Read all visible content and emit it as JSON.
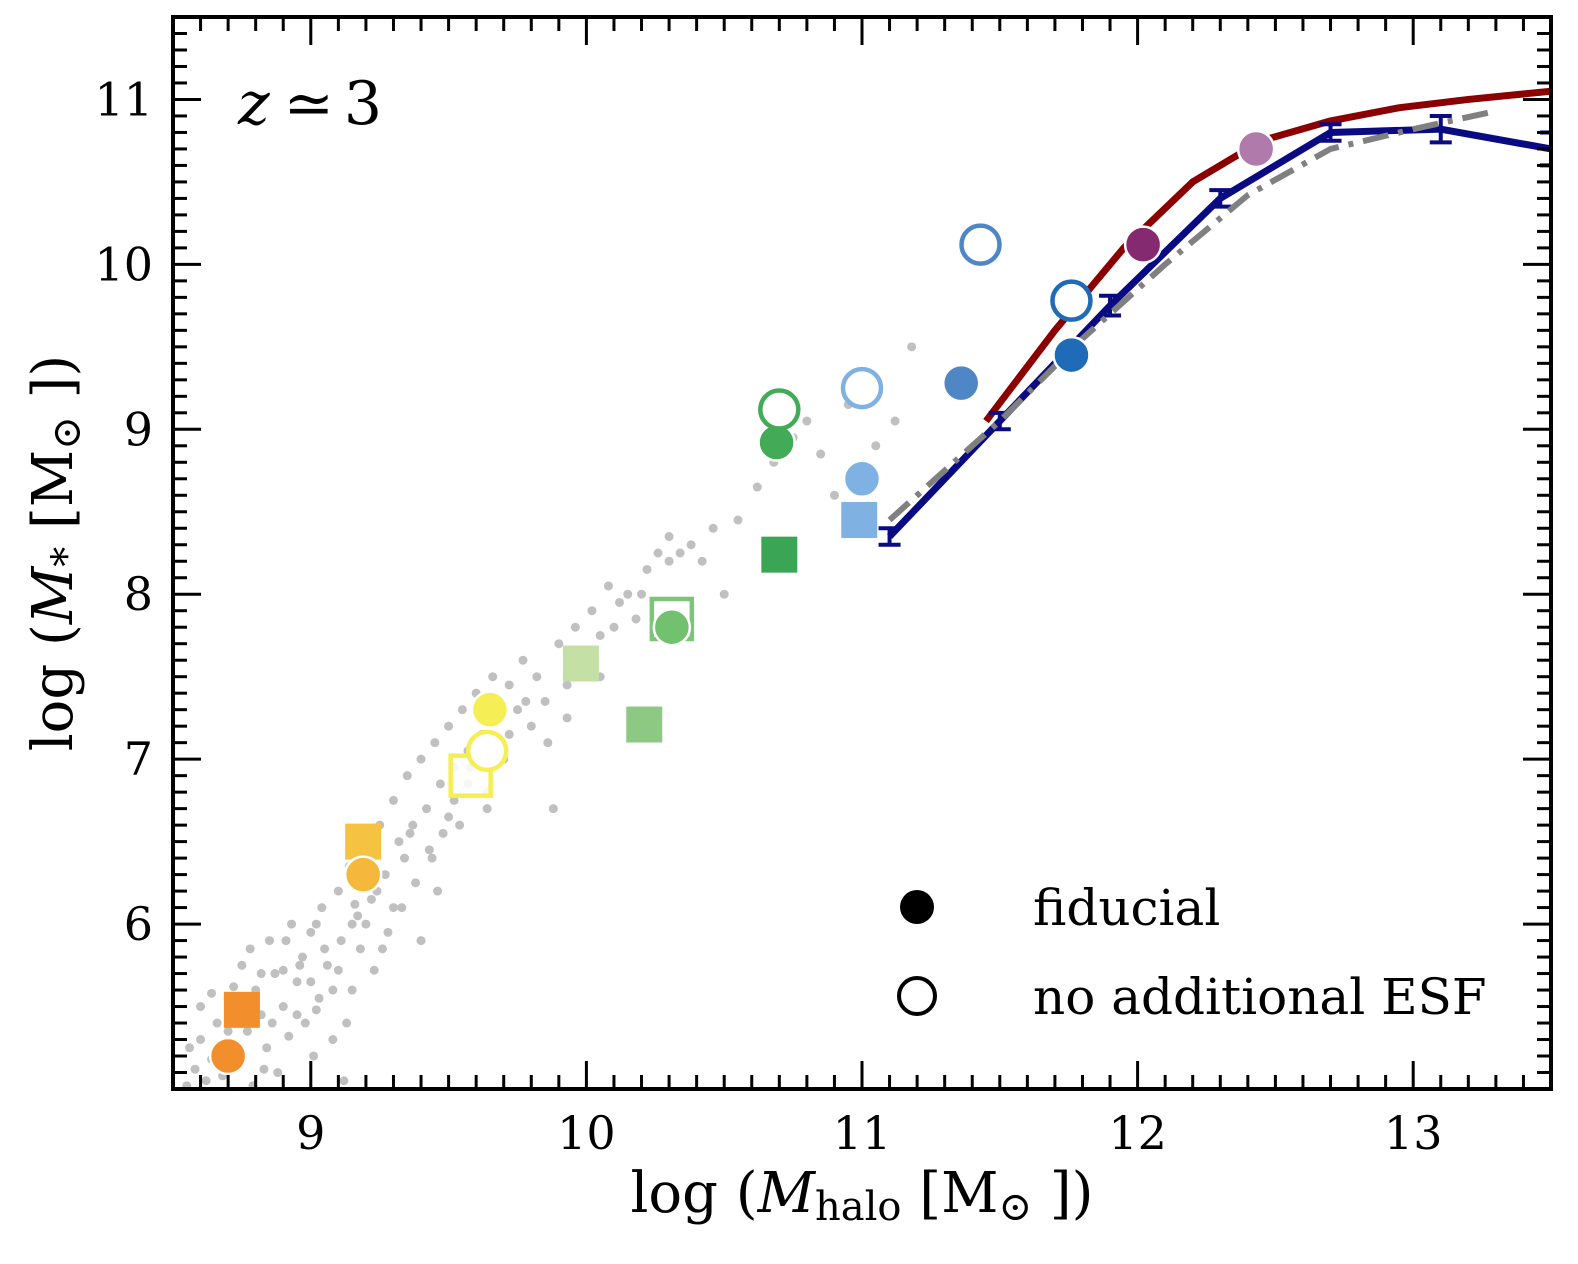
{
  "chart_data": {
    "type": "scatter",
    "annotation": {
      "var": "z",
      "symbol": "≃",
      "value": "3"
    },
    "xlabel": {
      "pre": "log (",
      "var": "M",
      "sub": "halo",
      "unit": " [M",
      "sun": "⊙",
      "post": " ])"
    },
    "ylabel": {
      "pre": "log (",
      "var": "M",
      "sub": "*",
      "unit": " [M",
      "sun": "⊙",
      "post": " ])"
    },
    "xlim": [
      8.5,
      13.5
    ],
    "ylim": [
      5.0,
      11.5
    ],
    "xticks": [
      "9",
      "10",
      "11",
      "12",
      "13"
    ],
    "yticks": [
      "6",
      "7",
      "8",
      "9",
      "10",
      "11"
    ],
    "legend": {
      "position": "bottom-right",
      "entries": [
        {
          "marker": "filled-circle",
          "label": "fiducial"
        },
        {
          "marker": "open-circle",
          "label": "no additional ESF"
        }
      ]
    },
    "colors": {
      "red_line": "#8b0000",
      "blue_line": "#0a0a82",
      "gray_line": "#808080",
      "background_points": "#c0c0c0"
    },
    "lines": [
      {
        "name": "abundance matching (red)",
        "color": "#8b0000",
        "x": [
          11.45,
          11.7,
          11.95,
          12.2,
          12.45,
          12.7,
          12.95,
          13.2,
          13.5
        ],
        "y": [
          9.05,
          9.6,
          10.1,
          10.5,
          10.75,
          10.87,
          10.95,
          11.0,
          11.05
        ]
      },
      {
        "name": "abundance matching with errors (blue)",
        "color": "#0a0a82",
        "x": [
          11.1,
          11.5,
          11.9,
          12.3,
          12.7,
          13.1,
          13.5
        ],
        "y": [
          8.35,
          9.05,
          9.75,
          10.4,
          10.8,
          10.82,
          10.7
        ],
        "yerr": [
          0.05,
          0.05,
          0.06,
          0.05,
          0.05,
          0.08,
          0.1
        ]
      },
      {
        "name": "abundance matching (gray dash-dot)",
        "color": "#808080",
        "x": [
          11.1,
          11.5,
          11.8,
          12.1,
          12.4,
          12.7,
          13.0,
          13.3
        ],
        "y": [
          8.45,
          9.05,
          9.55,
          10.0,
          10.42,
          10.7,
          10.82,
          10.93
        ]
      }
    ],
    "points": [
      {
        "x": 8.7,
        "y": 5.2,
        "marker": "filled-circle",
        "color": "#f28e2b"
      },
      {
        "x": 8.75,
        "y": 5.48,
        "marker": "filled-square",
        "color": "#f28e2b"
      },
      {
        "x": 9.19,
        "y": 6.3,
        "marker": "filled-circle",
        "color": "#f5b83d"
      },
      {
        "x": 9.19,
        "y": 6.5,
        "marker": "filled-square",
        "color": "#f5c242"
      },
      {
        "x": 9.58,
        "y": 6.9,
        "marker": "open-square",
        "color": "#f5ee55"
      },
      {
        "x": 9.64,
        "y": 7.05,
        "marker": "open-circle",
        "color": "#f5ee55"
      },
      {
        "x": 9.65,
        "y": 7.3,
        "marker": "filled-circle",
        "color": "#f5ee55"
      },
      {
        "x": 9.98,
        "y": 7.58,
        "marker": "filled-square",
        "color": "#c5e0a5"
      },
      {
        "x": 10.21,
        "y": 7.21,
        "marker": "filled-square",
        "color": "#8ec983"
      },
      {
        "x": 10.31,
        "y": 7.8,
        "marker": "filled-circle",
        "color": "#72c16f"
      },
      {
        "x": 10.31,
        "y": 7.85,
        "marker": "open-square",
        "color": "#7dc37a"
      },
      {
        "x": 10.7,
        "y": 8.24,
        "marker": "filled-square",
        "color": "#3aa655"
      },
      {
        "x": 10.69,
        "y": 8.92,
        "marker": "filled-circle",
        "color": "#43ab57"
      },
      {
        "x": 10.7,
        "y": 9.12,
        "marker": "open-circle",
        "color": "#43ab57"
      },
      {
        "x": 10.99,
        "y": 8.45,
        "marker": "filled-square",
        "color": "#7fb2e3"
      },
      {
        "x": 11.0,
        "y": 8.7,
        "marker": "filled-circle",
        "color": "#7fb2e3"
      },
      {
        "x": 11.0,
        "y": 9.25,
        "marker": "open-circle",
        "color": "#7fb2e3"
      },
      {
        "x": 11.36,
        "y": 9.28,
        "marker": "filled-circle",
        "color": "#4f86c6"
      },
      {
        "x": 11.43,
        "y": 10.12,
        "marker": "open-circle",
        "color": "#4f86c6"
      },
      {
        "x": 11.76,
        "y": 9.45,
        "marker": "filled-circle",
        "color": "#1f6bb8"
      },
      {
        "x": 11.76,
        "y": 9.78,
        "marker": "open-circle",
        "color": "#1f6bb8"
      },
      {
        "x": 12.02,
        "y": 10.12,
        "marker": "filled-circle",
        "color": "#852a70"
      },
      {
        "x": 12.43,
        "y": 10.7,
        "marker": "filled-circle",
        "color": "#b07aab"
      }
    ],
    "background_points": [
      [
        8.55,
        5.02
      ],
      [
        8.58,
        5.12
      ],
      [
        8.6,
        5.3
      ],
      [
        8.62,
        5.05
      ],
      [
        8.64,
        5.18
      ],
      [
        8.66,
        5.4
      ],
      [
        8.68,
        5.08
      ],
      [
        8.7,
        5.55
      ],
      [
        8.72,
        5.28
      ],
      [
        8.74,
        5.15
      ],
      [
        8.75,
        5.75
      ],
      [
        8.77,
        5.35
      ],
      [
        8.79,
        5.02
      ],
      [
        8.8,
        5.6
      ],
      [
        8.82,
        5.45
      ],
      [
        8.84,
        5.25
      ],
      [
        8.85,
        5.9
      ],
      [
        8.87,
        5.7
      ],
      [
        8.88,
        5.1
      ],
      [
        8.9,
        5.5
      ],
      [
        8.92,
        5.32
      ],
      [
        8.93,
        6.0
      ],
      [
        8.95,
        5.65
      ],
      [
        8.97,
        5.8
      ],
      [
        8.98,
        5.4
      ],
      [
        9.0,
        5.95
      ],
      [
        9.01,
        5.2
      ],
      [
        9.03,
        5.55
      ],
      [
        9.04,
        6.1
      ],
      [
        9.06,
        5.75
      ],
      [
        9.08,
        5.3
      ],
      [
        9.1,
        6.2
      ],
      [
        9.11,
        5.9
      ],
      [
        9.12,
        5.05
      ],
      [
        9.14,
        6.35
      ],
      [
        9.15,
        5.6
      ],
      [
        9.17,
        6.05
      ],
      [
        9.18,
        5.85
      ],
      [
        9.2,
        6.45
      ],
      [
        9.22,
        6.15
      ],
      [
        9.23,
        5.72
      ],
      [
        9.25,
        6.6
      ],
      [
        9.27,
        6.3
      ],
      [
        9.28,
        5.95
      ],
      [
        9.3,
        6.75
      ],
      [
        9.32,
        6.5
      ],
      [
        9.33,
        6.1
      ],
      [
        9.35,
        6.9
      ],
      [
        9.37,
        6.6
      ],
      [
        9.38,
        6.25
      ],
      [
        9.4,
        7.0
      ],
      [
        9.42,
        6.7
      ],
      [
        9.44,
        6.4
      ],
      [
        9.45,
        7.1
      ],
      [
        9.47,
        6.85
      ],
      [
        9.48,
        6.55
      ],
      [
        9.5,
        7.2
      ],
      [
        9.52,
        6.95
      ],
      [
        9.54,
        6.6
      ],
      [
        9.55,
        7.3
      ],
      [
        9.57,
        7.05
      ],
      [
        9.6,
        7.4
      ],
      [
        9.62,
        7.15
      ],
      [
        9.64,
        6.8
      ],
      [
        9.66,
        7.5
      ],
      [
        9.68,
        7.25
      ],
      [
        9.7,
        7.0
      ],
      [
        9.72,
        7.45
      ],
      [
        9.75,
        7.3
      ],
      [
        9.77,
        7.6
      ],
      [
        9.8,
        7.2
      ],
      [
        9.82,
        7.5
      ],
      [
        9.85,
        7.35
      ],
      [
        9.88,
        6.7
      ],
      [
        9.9,
        7.7
      ],
      [
        9.93,
        7.45
      ],
      [
        9.96,
        7.8
      ],
      [
        9.98,
        7.6
      ],
      [
        10.02,
        7.9
      ],
      [
        10.05,
        7.75
      ],
      [
        10.08,
        8.05
      ],
      [
        10.12,
        7.95
      ],
      [
        10.15,
        8.0
      ],
      [
        10.18,
        7.85
      ],
      [
        10.22,
        8.15
      ],
      [
        10.26,
        8.25
      ],
      [
        10.3,
        8.35
      ],
      [
        10.34,
        8.25
      ],
      [
        10.38,
        8.3
      ],
      [
        10.42,
        8.2
      ],
      [
        10.46,
        8.4
      ],
      [
        10.5,
        8.0
      ],
      [
        10.55,
        8.45
      ],
      [
        10.62,
        8.65
      ],
      [
        10.68,
        8.8
      ],
      [
        10.75,
        8.95
      ],
      [
        10.8,
        9.05
      ],
      [
        10.85,
        8.85
      ],
      [
        10.9,
        8.6
      ],
      [
        10.95,
        9.15
      ],
      [
        11.05,
        8.9
      ],
      [
        11.12,
        9.05
      ],
      [
        11.18,
        9.5
      ],
      [
        8.56,
        5.25
      ],
      [
        8.6,
        5.5
      ],
      [
        8.66,
        5.15
      ],
      [
        8.72,
        5.62
      ],
      [
        8.78,
        5.85
      ],
      [
        8.83,
        5.12
      ],
      [
        8.9,
        5.72
      ],
      [
        8.95,
        5.45
      ],
      [
        9.02,
        6.0
      ],
      [
        9.08,
        5.6
      ],
      [
        9.13,
        5.4
      ],
      [
        9.2,
        6.0
      ],
      [
        9.26,
        5.85
      ],
      [
        9.34,
        6.4
      ],
      [
        9.4,
        5.9
      ],
      [
        9.46,
        6.2
      ],
      [
        9.52,
        6.75
      ],
      [
        9.58,
        6.95
      ],
      [
        9.64,
        6.7
      ],
      [
        9.72,
        7.15
      ],
      [
        9.78,
        7.35
      ],
      [
        9.86,
        7.1
      ],
      [
        9.93,
        7.25
      ],
      [
        10.05,
        7.5
      ],
      [
        10.1,
        7.8
      ],
      [
        10.2,
        8.0
      ],
      [
        10.3,
        8.2
      ],
      [
        9.0,
        5.65
      ],
      [
        9.05,
        5.85
      ],
      [
        9.15,
        6.0
      ],
      [
        9.24,
        6.2
      ],
      [
        9.3,
        6.1
      ],
      [
        9.36,
        6.55
      ],
      [
        9.43,
        6.45
      ],
      [
        9.5,
        6.65
      ],
      [
        9.57,
        6.85
      ],
      [
        9.62,
        6.95
      ],
      [
        8.64,
        5.58
      ],
      [
        8.7,
        5.35
      ],
      [
        8.76,
        5.52
      ],
      [
        8.82,
        5.7
      ],
      [
        8.86,
        5.4
      ],
      [
        8.91,
        5.9
      ],
      [
        8.96,
        5.75
      ],
      [
        9.02,
        5.48
      ],
      [
        9.1,
        5.72
      ],
      [
        9.16,
        6.12
      ]
    ]
  }
}
